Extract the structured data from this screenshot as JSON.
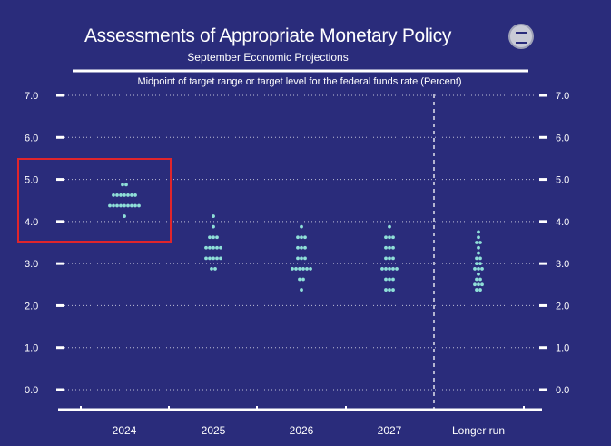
{
  "header": {
    "title": "Assessments of Appropriate Monetary Policy",
    "subtitle": "September Economic Projections",
    "caption": "Midpoint of target range or target level for the federal funds rate (Percent)",
    "seal_icon": "federal-reserve-seal-icon"
  },
  "chart_data": {
    "type": "scatter",
    "title": "Assessments of Appropriate Monetary Policy",
    "subtitle": "September Economic Projections",
    "ylabel": "Midpoint of target range or target level for the federal funds rate (Percent)",
    "xlabel": "",
    "ylim": [
      0,
      7
    ],
    "y_ticks": [
      "0.0",
      "1.0",
      "2.0",
      "3.0",
      "4.0",
      "5.0",
      "6.0",
      "7.0"
    ],
    "categories": [
      "2024",
      "2025",
      "2026",
      "2027",
      "Longer run"
    ],
    "grid": true,
    "legend": "none",
    "colors": {
      "background": "#2a2c7b",
      "dots": "#8fe0d8",
      "highlight": "#e0252b",
      "grid": "#ffffff"
    },
    "dots": [
      {
        "category": "2024",
        "levels": [
          {
            "y": 4.875,
            "count": 2
          },
          {
            "y": 4.625,
            "count": 7
          },
          {
            "y": 4.375,
            "count": 9
          },
          {
            "y": 4.125,
            "count": 1
          }
        ]
      },
      {
        "category": "2025",
        "levels": [
          {
            "y": 4.125,
            "count": 1
          },
          {
            "y": 3.875,
            "count": 1
          },
          {
            "y": 3.625,
            "count": 3
          },
          {
            "y": 3.375,
            "count": 5
          },
          {
            "y": 3.125,
            "count": 5
          },
          {
            "y": 2.875,
            "count": 2
          }
        ]
      },
      {
        "category": "2026",
        "levels": [
          {
            "y": 3.875,
            "count": 1
          },
          {
            "y": 3.625,
            "count": 3
          },
          {
            "y": 3.375,
            "count": 3
          },
          {
            "y": 3.125,
            "count": 3
          },
          {
            "y": 2.875,
            "count": 6
          },
          {
            "y": 2.625,
            "count": 2
          },
          {
            "y": 2.375,
            "count": 1
          }
        ]
      },
      {
        "category": "2027",
        "levels": [
          {
            "y": 3.875,
            "count": 1
          },
          {
            "y": 3.625,
            "count": 3
          },
          {
            "y": 3.375,
            "count": 3
          },
          {
            "y": 3.125,
            "count": 3
          },
          {
            "y": 2.875,
            "count": 5
          },
          {
            "y": 2.625,
            "count": 3
          },
          {
            "y": 2.375,
            "count": 3
          }
        ]
      },
      {
        "category": "Longer run",
        "levels": [
          {
            "y": 3.75,
            "count": 1
          },
          {
            "y": 3.625,
            "count": 1
          },
          {
            "y": 3.5,
            "count": 2
          },
          {
            "y": 3.375,
            "count": 1
          },
          {
            "y": 3.25,
            "count": 1
          },
          {
            "y": 3.125,
            "count": 2
          },
          {
            "y": 3.0,
            "count": 2
          },
          {
            "y": 2.875,
            "count": 3
          },
          {
            "y": 2.75,
            "count": 1
          },
          {
            "y": 2.625,
            "count": 2
          },
          {
            "y": 2.5,
            "count": 3
          },
          {
            "y": 2.375,
            "count": 2
          }
        ]
      }
    ]
  }
}
